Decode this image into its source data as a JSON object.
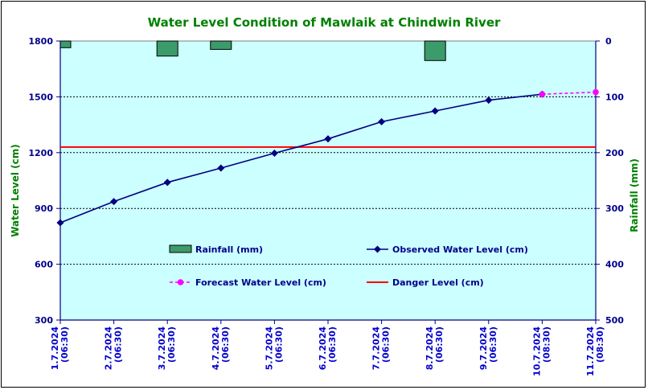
{
  "chart_data": {
    "type": "line",
    "title": "Water Level Condition of Mawlaik at Chindwin River",
    "ylabel": "Water Level (cm)",
    "ylabel_right": "Rainfall (mm)",
    "ylim": [
      300,
      1800
    ],
    "yticks": [
      300,
      600,
      900,
      1200,
      1500,
      1800
    ],
    "ylim_right": [
      0,
      500
    ],
    "yticks_right": [
      0,
      100,
      200,
      300,
      400,
      500
    ],
    "right_axis_inverted": true,
    "grid": "horizontal dashed",
    "categories": [
      [
        "1.7.2024",
        "(06:30)"
      ],
      [
        "2.7.2024",
        "(06:30)"
      ],
      [
        "3.7.2024",
        "(06:30)"
      ],
      [
        "4.7.2024",
        "(06:30)"
      ],
      [
        "5.7.2024",
        "(06:30)"
      ],
      [
        "6.7.2024",
        "(06:30)"
      ],
      [
        "7.7.2024",
        "(06:30)"
      ],
      [
        "8.7.2024",
        "(06:30)"
      ],
      [
        "9.7.2024",
        "(06:30)"
      ],
      [
        "10.7.2024",
        "(08:30)"
      ],
      [
        "11.7.2024",
        "(08:30)"
      ]
    ],
    "rainfall": {
      "name": "Rainfall (mm)",
      "color": "#3C9B6A",
      "values": [
        12,
        0,
        27,
        15,
        0,
        0,
        0,
        35,
        0,
        0,
        0
      ]
    },
    "observed": {
      "name": "Observed Water Level (cm)",
      "color": "#000080",
      "values": [
        823,
        937,
        1040,
        1117,
        1197,
        1274,
        1366,
        1424,
        1482,
        1514,
        null
      ]
    },
    "forecast": {
      "name": "Forecast Water Level (cm)",
      "color": "#FF00FF",
      "values": [
        null,
        null,
        null,
        null,
        null,
        null,
        null,
        null,
        null,
        1514,
        1525
      ]
    },
    "danger": {
      "name": "Danger Level (cm)",
      "color": "#FF0000",
      "value": 1230
    },
    "background": "#CCFFFF"
  }
}
